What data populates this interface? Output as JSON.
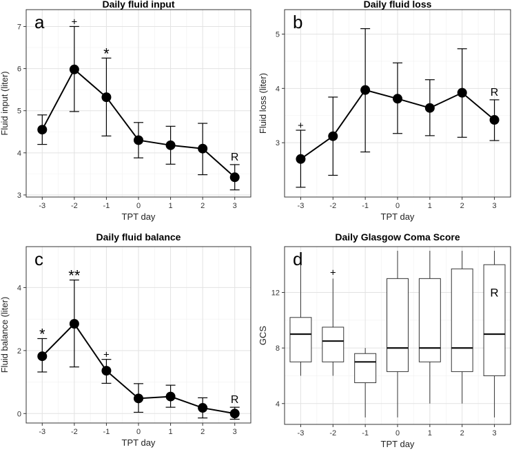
{
  "chart_data": [
    {
      "id": "a",
      "type": "line",
      "panel_letter": "a",
      "title": "Daily fluid input",
      "xlabel": "TPT day",
      "ylabel": "Fluid input (liter)",
      "categories": [
        "-3",
        "-2",
        "-1",
        "0",
        "1",
        "2",
        "3"
      ],
      "values": [
        4.55,
        5.98,
        5.32,
        4.3,
        4.18,
        4.1,
        3.42
      ],
      "error_low": [
        4.2,
        4.98,
        4.4,
        3.88,
        3.73,
        3.48,
        3.12
      ],
      "error_high": [
        4.9,
        7.0,
        6.25,
        4.72,
        4.63,
        4.7,
        3.72
      ],
      "yticks": [
        3,
        4,
        5,
        6,
        7
      ],
      "ylim": [
        2.95,
        7.4
      ],
      "annotations": [
        {
          "category": "-2",
          "text": "+",
          "value": 7.0
        },
        {
          "category": "-1",
          "text": "*",
          "value": 6.25
        },
        {
          "category": "3",
          "text": "R",
          "value": 3.72
        }
      ]
    },
    {
      "id": "b",
      "type": "line",
      "panel_letter": "b",
      "title": "Daily fluid loss",
      "xlabel": "TPT day",
      "ylabel": "Fluid loss (liter)",
      "categories": [
        "-3",
        "-2",
        "-1",
        "0",
        "1",
        "2",
        "3"
      ],
      "values": [
        2.7,
        3.12,
        3.97,
        3.81,
        3.64,
        3.92,
        3.42
      ],
      "error_low": [
        2.18,
        2.4,
        2.83,
        3.17,
        3.13,
        3.1,
        3.04
      ],
      "error_high": [
        3.23,
        3.84,
        5.1,
        4.47,
        4.16,
        4.73,
        3.79
      ],
      "yticks": [
        3,
        4,
        5
      ],
      "ylim": [
        2.0,
        5.45
      ],
      "annotations": [
        {
          "category": "-3",
          "text": "+",
          "value": 3.23
        },
        {
          "category": "3",
          "text": "R",
          "value": 3.79
        }
      ]
    },
    {
      "id": "c",
      "type": "line",
      "panel_letter": "c",
      "title": "Daily fluid balance",
      "xlabel": "TPT day",
      "ylabel": "Fluid balance (liter)",
      "categories": [
        "-3",
        "-2",
        "-1",
        "0",
        "1",
        "2",
        "3"
      ],
      "values": [
        1.82,
        2.85,
        1.36,
        0.48,
        0.54,
        0.18,
        0.0
      ],
      "error_low": [
        1.32,
        1.48,
        0.96,
        0.04,
        0.2,
        -0.14,
        -0.18
      ],
      "error_high": [
        2.38,
        4.24,
        1.72,
        0.95,
        0.9,
        0.5,
        0.2
      ],
      "yticks": [
        0,
        2,
        4
      ],
      "ylim": [
        -0.3,
        5.3
      ],
      "annotations": [
        {
          "category": "-3",
          "text": "*",
          "value": 2.38
        },
        {
          "category": "-2",
          "text": "**",
          "value": 4.24
        },
        {
          "category": "-1",
          "text": "+",
          "value": 1.72
        },
        {
          "category": "3",
          "text": "R",
          "value": 0.2
        }
      ]
    },
    {
      "id": "d",
      "type": "box",
      "panel_letter": "d",
      "title": "Daily Glasgow Coma Score",
      "xlabel": "TPT day",
      "ylabel": "GCS",
      "categories": [
        "-3",
        "-2",
        "-1",
        "0",
        "1",
        "2",
        "3"
      ],
      "boxes": [
        {
          "min": 6,
          "q1": 7,
          "median": 9,
          "q3": 10.2,
          "max": 14
        },
        {
          "min": 6,
          "q1": 7,
          "median": 8.5,
          "q3": 9.5,
          "max": 13
        },
        {
          "min": 3,
          "q1": 5.5,
          "median": 7,
          "q3": 7.6,
          "max": 8
        },
        {
          "min": 3,
          "q1": 6.3,
          "median": 8,
          "q3": 13,
          "max": 15
        },
        {
          "min": 4,
          "q1": 7,
          "median": 8,
          "q3": 13,
          "max": 15
        },
        {
          "min": 4,
          "q1": 6.3,
          "median": 8,
          "q3": 13.7,
          "max": 15
        },
        {
          "min": 3,
          "q1": 6,
          "median": 9,
          "q3": 14,
          "max": 15
        }
      ],
      "yticks": [
        4,
        8,
        12
      ],
      "ylim": [
        2.5,
        15.3
      ],
      "annotations": [
        {
          "category": "-2",
          "text": "+",
          "value": 13
        },
        {
          "category": "3",
          "text": "R",
          "value": 12
        }
      ]
    }
  ]
}
